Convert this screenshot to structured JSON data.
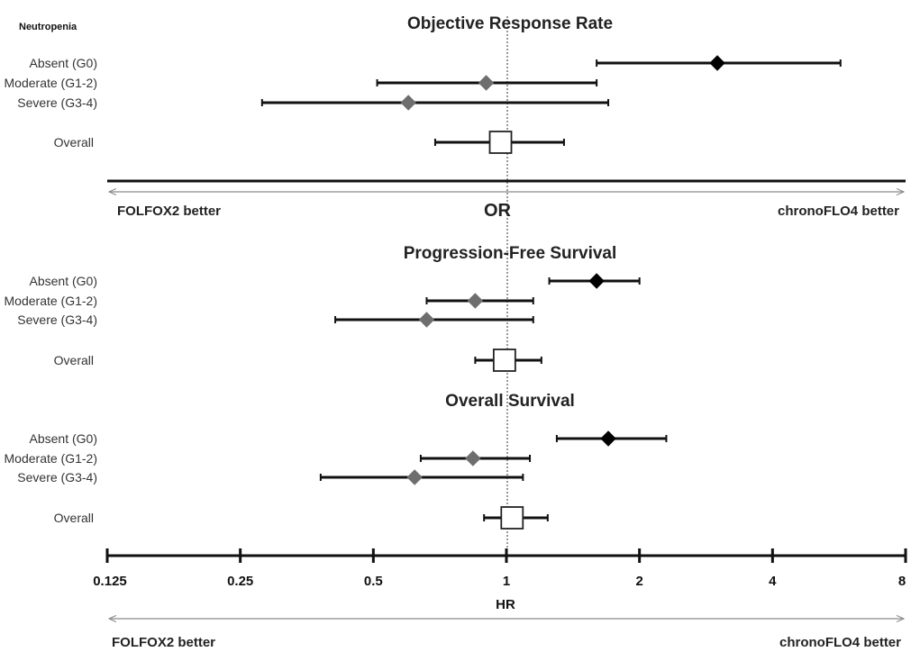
{
  "grouping_label": "Neutropenia",
  "chart_data": {
    "type": "forest",
    "x_scale": "log2",
    "xlim": [
      0.125,
      8
    ],
    "ticks": [
      "0.125",
      "0.25",
      "0.5",
      "1",
      "2",
      "4",
      "8"
    ],
    "tick_values": [
      0.125,
      0.25,
      0.5,
      1,
      2,
      4,
      8
    ],
    "reference_line": 1,
    "colors": {
      "absent": "#000000",
      "subgroup": "#6e6e6e",
      "overall_fill": "#ffffff",
      "line": "#111111"
    },
    "panels": [
      {
        "title": "Objective Response Rate",
        "measure": "OR",
        "favors_left": "FOLFOX2 better",
        "favors_right": "chronoFLO4 better",
        "rows": [
          {
            "label": "Absent (G0)",
            "estimate": 3.0,
            "lower": 1.6,
            "upper": 5.7,
            "marker": "diamond",
            "color": "#000000"
          },
          {
            "label": "Moderate (G1-2)",
            "estimate": 0.9,
            "lower": 0.51,
            "upper": 1.6,
            "marker": "diamond",
            "color": "#6e6e6e"
          },
          {
            "label": "Severe (G3-4)",
            "estimate": 0.6,
            "lower": 0.28,
            "upper": 1.7,
            "marker": "diamond",
            "color": "#6e6e6e"
          },
          {
            "label": "Overall",
            "estimate": 0.97,
            "lower": 0.69,
            "upper": 1.35,
            "marker": "square",
            "color": "#ffffff"
          }
        ]
      },
      {
        "title": "Progression-Free Survival",
        "measure": "HR",
        "rows": [
          {
            "label": "Absent (G0)",
            "estimate": 1.6,
            "lower": 1.25,
            "upper": 2.0,
            "marker": "diamond",
            "color": "#000000"
          },
          {
            "label": "Moderate (G1-2)",
            "estimate": 0.85,
            "lower": 0.66,
            "upper": 1.15,
            "marker": "diamond",
            "color": "#6e6e6e"
          },
          {
            "label": "Severe (G3-4)",
            "estimate": 0.66,
            "lower": 0.41,
            "upper": 1.15,
            "marker": "diamond",
            "color": "#6e6e6e"
          },
          {
            "label": "Overall",
            "estimate": 0.99,
            "lower": 0.85,
            "upper": 1.2,
            "marker": "square",
            "color": "#ffffff"
          }
        ]
      },
      {
        "title": "Overall Survival",
        "measure": "HR",
        "rows": [
          {
            "label": "Absent (G0)",
            "estimate": 1.7,
            "lower": 1.3,
            "upper": 2.3,
            "marker": "diamond",
            "color": "#000000"
          },
          {
            "label": "Moderate (G1-2)",
            "estimate": 0.84,
            "lower": 0.64,
            "upper": 1.13,
            "marker": "diamond",
            "color": "#6e6e6e"
          },
          {
            "label": "Severe (G3-4)",
            "estimate": 0.62,
            "lower": 0.38,
            "upper": 1.09,
            "marker": "diamond",
            "color": "#6e6e6e"
          },
          {
            "label": "Overall",
            "estimate": 1.03,
            "lower": 0.89,
            "upper": 1.24,
            "marker": "square",
            "color": "#ffffff"
          }
        ]
      }
    ],
    "bottom_axis": {
      "label": "HR",
      "favors_left": "FOLFOX2 better",
      "favors_right": "chronoFLO4 better"
    }
  }
}
